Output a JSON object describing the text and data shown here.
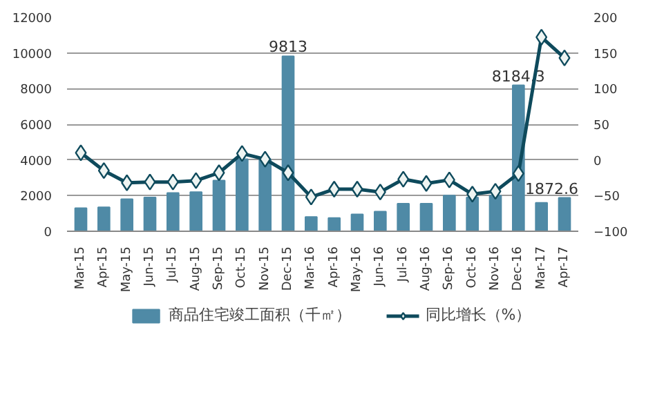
{
  "chart_data": {
    "type": "bar",
    "categories": [
      "Mar-15",
      "Apr-15",
      "May-15",
      "Jun-15",
      "Jul-15",
      "Aug-15",
      "Sep-15",
      "Oct-15",
      "Nov-15",
      "Dec-15",
      "Mar-16",
      "Apr-16",
      "May-16",
      "Jun-16",
      "Jul-16",
      "Aug-16",
      "Sep-16",
      "Oct-16",
      "Nov-16",
      "Dec-16",
      "Mar-17",
      "Apr-17"
    ],
    "series": [
      {
        "name": "商品住宅竣工面积（千㎡）",
        "color": "#4f8aa6",
        "values": [
          1300,
          1350,
          1800,
          1900,
          2150,
          2200,
          2850,
          4050,
          4050,
          9813,
          800,
          750,
          950,
          1100,
          1550,
          1550,
          2000,
          1900,
          2000,
          8184.3,
          1600,
          1872.6
        ],
        "value_labels": [
          null,
          null,
          null,
          null,
          null,
          null,
          null,
          null,
          null,
          "9813",
          null,
          null,
          null,
          null,
          null,
          null,
          null,
          null,
          null,
          "8184.3",
          null,
          "1872.6"
        ]
      },
      {
        "name": "同比增长（%）",
        "type": "line",
        "axis": "y2",
        "color": "#0e4a5c",
        "marker": "diamond",
        "values": [
          10,
          -15,
          -32,
          -31,
          -31,
          -29,
          -18,
          9,
          1,
          -18,
          -52,
          -41,
          -41,
          -45,
          -27,
          -33,
          -28,
          -48,
          -44,
          -19,
          172,
          143
        ]
      }
    ],
    "ylim": [
      0,
      12000
    ],
    "yticks": [
      0,
      2000,
      4000,
      6000,
      8000,
      10000,
      12000
    ],
    "y2lim": [
      -100,
      200
    ],
    "y2ticks": [
      -100,
      -50,
      0,
      50,
      100,
      150,
      200
    ],
    "grid": "y",
    "legend": "bottom"
  }
}
